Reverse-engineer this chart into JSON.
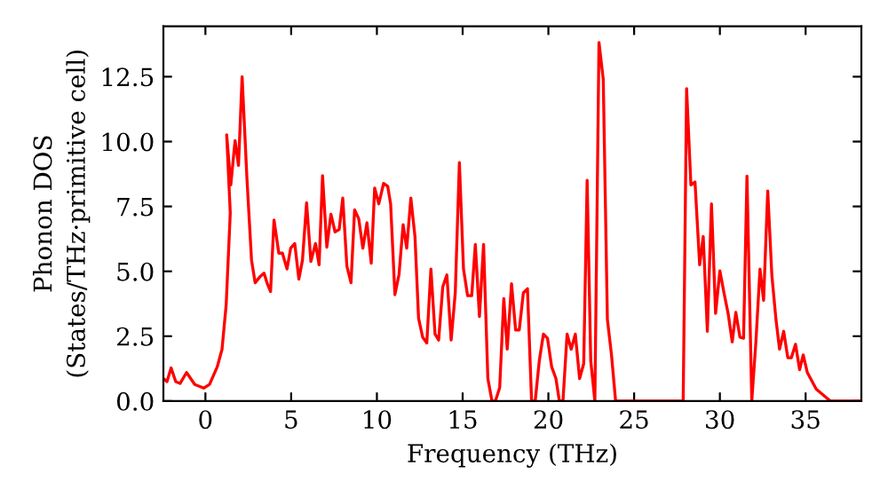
{
  "chart_data": {
    "type": "line",
    "xlabel": "Frequency (THz)",
    "ylabel": "Phonon DOS\n(States/THz·primitive cell)",
    "xlim": [
      -2.45,
      38.25
    ],
    "ylim": [
      0,
      14.44
    ],
    "xticks": [
      0,
      5,
      10,
      15,
      20,
      25,
      30,
      35
    ],
    "yticks": [
      {
        "value": 0,
        "label": "0.0"
      },
      {
        "value": 2.5,
        "label": "2.5"
      },
      {
        "value": 5,
        "label": "5.0"
      },
      {
        "value": 7.5,
        "label": "7.5"
      },
      {
        "value": 10,
        "label": "10.0"
      },
      {
        "value": 12.5,
        "label": "12.5"
      }
    ],
    "grid": false,
    "marker": "none",
    "line_style": "solid",
    "series": [
      {
        "color": "#ff0000",
        "x": [
          -2.45,
          -2.24,
          -2.0,
          -1.73,
          -1.48,
          -1.1,
          -0.62,
          -0.1,
          0.24,
          0.69,
          0.97,
          1.21,
          1.45,
          1.24,
          1.48,
          1.73,
          1.93,
          2.14,
          2.42,
          2.69,
          2.9,
          3.18,
          3.42,
          3.59,
          3.8,
          4.0,
          4.28,
          4.49,
          4.76,
          4.97,
          5.21,
          5.45,
          5.66,
          5.9,
          6.15,
          6.42,
          6.63,
          6.83,
          7.08,
          7.32,
          7.56,
          7.8,
          8.01,
          8.25,
          8.49,
          8.7,
          8.94,
          9.18,
          9.42,
          9.67,
          9.87,
          10.11,
          10.39,
          10.63,
          10.8,
          11.05,
          11.29,
          11.53,
          11.74,
          11.98,
          12.22,
          12.43,
          12.67,
          12.91,
          13.15,
          13.39,
          13.6,
          13.84,
          14.08,
          14.33,
          14.57,
          14.81,
          15.05,
          15.29,
          15.53,
          15.74,
          15.98,
          16.22,
          16.47,
          16.71,
          16.91,
          17.16,
          17.4,
          17.6,
          17.85,
          18.09,
          18.3,
          18.54,
          18.78,
          19.02,
          19.23,
          19.47,
          19.71,
          19.95,
          20.19,
          20.44,
          20.64,
          20.85,
          21.09,
          21.33,
          21.57,
          21.82,
          22.06,
          22.26,
          22.47,
          22.71,
          22.95,
          23.2,
          23.44,
          23.68,
          23.92,
          27.86,
          28.06,
          28.31,
          28.55,
          28.82,
          29.03,
          29.27,
          29.51,
          29.75,
          30.0,
          30.24,
          30.48,
          30.72,
          30.93,
          31.17,
          31.38,
          31.58,
          31.86,
          32.1,
          32.34,
          32.55,
          32.79,
          33.03,
          33.27,
          33.48,
          33.72,
          33.96,
          34.17,
          34.41,
          34.65,
          34.86,
          35.1,
          35.62,
          36.45,
          38.25
        ],
        "values": [
          0.87,
          0.75,
          1.28,
          0.75,
          0.68,
          1.1,
          0.64,
          0.5,
          0.64,
          1.32,
          2.0,
          3.7,
          7.25,
          10.26,
          8.33,
          10.04,
          9.08,
          12.5,
          8.6,
          5.43,
          4.56,
          4.79,
          4.93,
          4.56,
          4.22,
          6.98,
          5.7,
          5.7,
          5.09,
          5.89,
          6.07,
          4.7,
          5.43,
          7.64,
          5.38,
          6.07,
          5.25,
          8.69,
          5.93,
          7.2,
          6.52,
          6.61,
          7.82,
          5.2,
          4.56,
          7.37,
          7.03,
          5.89,
          6.87,
          5.31,
          8.21,
          7.6,
          8.39,
          8.28,
          7.6,
          4.1,
          4.88,
          6.8,
          5.89,
          7.82,
          6.34,
          3.19,
          2.46,
          2.24,
          5.09,
          2.58,
          2.35,
          4.4,
          4.86,
          2.35,
          4.17,
          9.19,
          5.09,
          4.06,
          4.06,
          6.04,
          3.26,
          6.04,
          0.87,
          0,
          0,
          0.52,
          3.95,
          2.0,
          4.52,
          2.74,
          2.74,
          4.17,
          4.33,
          0,
          0,
          1.55,
          2.58,
          2.42,
          1.32,
          0.87,
          0,
          0,
          2.58,
          2.0,
          2.58,
          0.87,
          1.44,
          8.51,
          1.55,
          0,
          13.82,
          12.39,
          3.15,
          1.78,
          0,
          0,
          12.04,
          8.33,
          8.44,
          5.25,
          6.34,
          2.69,
          7.6,
          3.38,
          5.02,
          4.17,
          3.38,
          2.28,
          3.42,
          2.46,
          2.42,
          8.67,
          0,
          2.28,
          5.09,
          3.88,
          8.1,
          4.86,
          3.15,
          2.0,
          2.69,
          1.67,
          1.67,
          2.19,
          1.21,
          1.78,
          1.1,
          0.46,
          0,
          0
        ]
      }
    ]
  }
}
